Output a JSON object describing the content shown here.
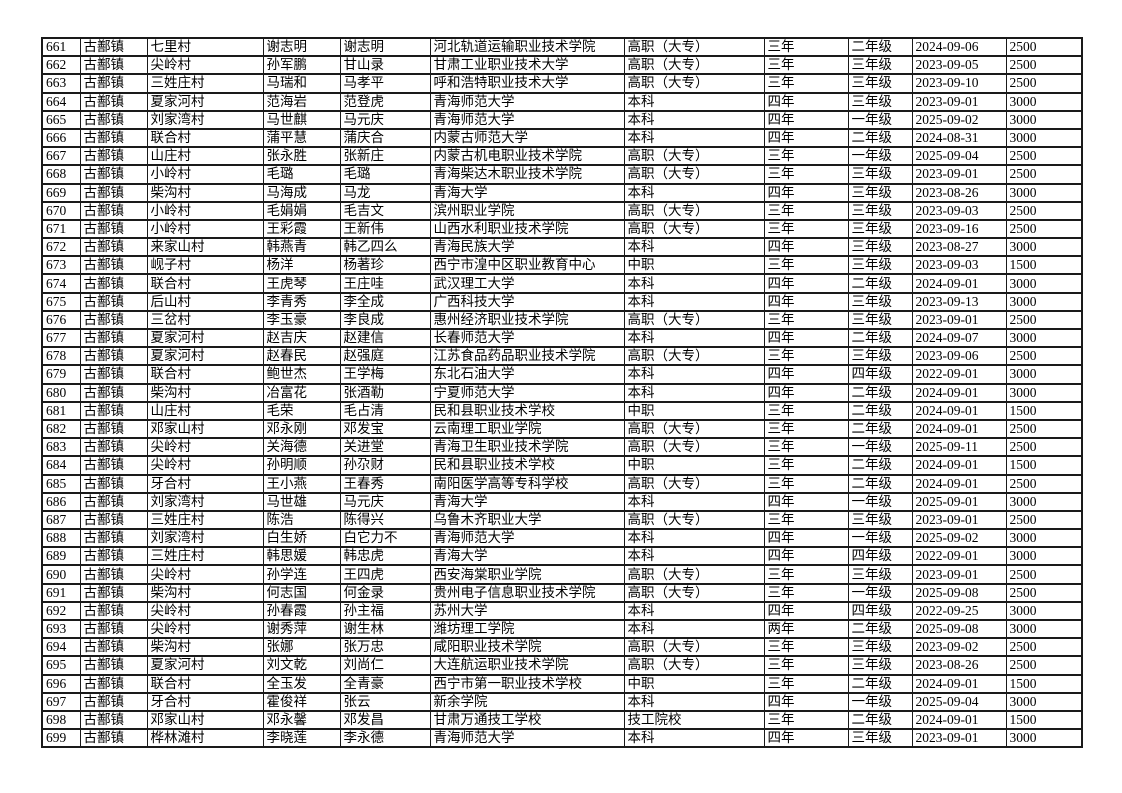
{
  "page": {
    "background_color": "#ffffff",
    "text_color": "#000000",
    "border_color": "#1a1a1a"
  },
  "table": {
    "rows": [
      [
        "661",
        "古鄯镇",
        "七里村",
        "谢志明",
        "谢志明",
        "河北轨道运输职业技术学院",
        "高职（大专）",
        "三年",
        "二年级",
        "2024-09-06",
        "2500"
      ],
      [
        "662",
        "古鄯镇",
        "尖岭村",
        "孙军鹏",
        "甘山录",
        "甘肃工业职业技术大学",
        "高职（大专）",
        "三年",
        "三年级",
        "2023-09-05",
        "2500"
      ],
      [
        "663",
        "古鄯镇",
        "三姓庄村",
        "马瑞和",
        "马孝平",
        "呼和浩特职业技术大学",
        "高职（大专）",
        "三年",
        "三年级",
        "2023-09-10",
        "2500"
      ],
      [
        "664",
        "古鄯镇",
        "夏家河村",
        "范海岩",
        "范登虎",
        "青海师范大学",
        "本科",
        "四年",
        "三年级",
        "2023-09-01",
        "3000"
      ],
      [
        "665",
        "古鄯镇",
        "刘家湾村",
        "马世麒",
        "马元庆",
        "青海师范大学",
        "本科",
        "四年",
        "一年级",
        "2025-09-02",
        "3000"
      ],
      [
        "666",
        "古鄯镇",
        "联合村",
        "蒲平慧",
        "蒲庆合",
        "内蒙古师范大学",
        "本科",
        "四年",
        "二年级",
        "2024-08-31",
        "3000"
      ],
      [
        "667",
        "古鄯镇",
        "山庄村",
        "张永胜",
        "张新庄",
        "内蒙古机电职业技术学院",
        "高职（大专）",
        "三年",
        "一年级",
        "2025-09-04",
        "2500"
      ],
      [
        "668",
        "古鄯镇",
        "小岭村",
        "毛璐",
        "毛璐",
        "青海柴达木职业技术学院",
        "高职（大专）",
        "三年",
        "三年级",
        "2023-09-01",
        "2500"
      ],
      [
        "669",
        "古鄯镇",
        "柴沟村",
        "马海成",
        "马龙",
        "青海大学",
        "本科",
        "四年",
        "三年级",
        "2023-08-26",
        "3000"
      ],
      [
        "670",
        "古鄯镇",
        "小岭村",
        "毛娟娟",
        "毛吉文",
        "滨州职业学院",
        "高职（大专）",
        "三年",
        "三年级",
        "2023-09-03",
        "2500"
      ],
      [
        "671",
        "古鄯镇",
        "小岭村",
        "王彩霞",
        "王新伟",
        "山西水利职业技术学院",
        "高职（大专）",
        "三年",
        "三年级",
        "2023-09-16",
        "2500"
      ],
      [
        "672",
        "古鄯镇",
        "来家山村",
        "韩燕青",
        "韩乙四么",
        "青海民族大学",
        "本科",
        "四年",
        "三年级",
        "2023-08-27",
        "3000"
      ],
      [
        "673",
        "古鄯镇",
        "岘子村",
        "杨洋",
        "杨著珍",
        "西宁市湟中区职业教育中心",
        "中职",
        "三年",
        "三年级",
        "2023-09-03",
        "1500"
      ],
      [
        "674",
        "古鄯镇",
        "联合村",
        "王虎琴",
        "王庄哇",
        "武汉理工大学",
        "本科",
        "四年",
        "二年级",
        "2024-09-01",
        "3000"
      ],
      [
        "675",
        "古鄯镇",
        "后山村",
        "李青秀",
        "李全成",
        "广西科技大学",
        "本科",
        "四年",
        "三年级",
        "2023-09-13",
        "3000"
      ],
      [
        "676",
        "古鄯镇",
        "三岔村",
        "李玉豪",
        "李良成",
        "惠州经济职业技术学院",
        "高职（大专）",
        "三年",
        "三年级",
        "2023-09-01",
        "2500"
      ],
      [
        "677",
        "古鄯镇",
        "夏家河村",
        "赵吉庆",
        "赵建信",
        "长春师范大学",
        "本科",
        "四年",
        "二年级",
        "2024-09-07",
        "3000"
      ],
      [
        "678",
        "古鄯镇",
        "夏家河村",
        "赵春民",
        "赵强庭",
        "江苏食品药品职业技术学院",
        "高职（大专）",
        "三年",
        "三年级",
        "2023-09-06",
        "2500"
      ],
      [
        "679",
        "古鄯镇",
        "联合村",
        "鲍世杰",
        "王学梅",
        "东北石油大学",
        "本科",
        "四年",
        "四年级",
        "2022-09-01",
        "3000"
      ],
      [
        "680",
        "古鄯镇",
        "柴沟村",
        "冶富花",
        "张酒勒",
        "宁夏师范大学",
        "本科",
        "四年",
        "二年级",
        "2024-09-01",
        "3000"
      ],
      [
        "681",
        "古鄯镇",
        "山庄村",
        "毛荣",
        "毛占清",
        "民和县职业技术学校",
        "中职",
        "三年",
        "二年级",
        "2024-09-01",
        "1500"
      ],
      [
        "682",
        "古鄯镇",
        "邓家山村",
        "邓永刚",
        "邓发宝",
        "云南理工职业学院",
        "高职（大专）",
        "三年",
        "二年级",
        "2024-09-01",
        "2500"
      ],
      [
        "683",
        "古鄯镇",
        "尖岭村",
        "关海德",
        "关进堂",
        "青海卫生职业技术学院",
        "高职（大专）",
        "三年",
        "一年级",
        "2025-09-11",
        "2500"
      ],
      [
        "684",
        "古鄯镇",
        "尖岭村",
        "孙明顺",
        "孙尕财",
        "民和县职业技术学校",
        "中职",
        "三年",
        "二年级",
        "2024-09-01",
        "1500"
      ],
      [
        "685",
        "古鄯镇",
        "牙合村",
        "王小燕",
        "王春秀",
        "南阳医学高等专科学校",
        "高职（大专）",
        "三年",
        "二年级",
        "2024-09-01",
        "2500"
      ],
      [
        "686",
        "古鄯镇",
        "刘家湾村",
        "马世雄",
        "马元庆",
        "青海大学",
        "本科",
        "四年",
        "一年级",
        "2025-09-01",
        "3000"
      ],
      [
        "687",
        "古鄯镇",
        "三姓庄村",
        "陈浩",
        "陈得兴",
        "乌鲁木齐职业大学",
        "高职（大专）",
        "三年",
        "三年级",
        "2023-09-01",
        "2500"
      ],
      [
        "688",
        "古鄯镇",
        "刘家湾村",
        "白生娇",
        "白它力不",
        "青海师范大学",
        "本科",
        "四年",
        "一年级",
        "2025-09-02",
        "3000"
      ],
      [
        "689",
        "古鄯镇",
        "三姓庄村",
        "韩思媛",
        "韩忠虎",
        "青海大学",
        "本科",
        "四年",
        "四年级",
        "2022-09-01",
        "3000"
      ],
      [
        "690",
        "古鄯镇",
        "尖岭村",
        "孙学连",
        "王四虎",
        "西安海棠职业学院",
        "高职（大专）",
        "三年",
        "三年级",
        "2023-09-01",
        "2500"
      ],
      [
        "691",
        "古鄯镇",
        "柴沟村",
        "何志国",
        "何金录",
        "贵州电子信息职业技术学院",
        "高职（大专）",
        "三年",
        "一年级",
        "2025-09-08",
        "2500"
      ],
      [
        "692",
        "古鄯镇",
        "尖岭村",
        "孙春霞",
        "孙主福",
        "苏州大学",
        "本科",
        "四年",
        "四年级",
        "2022-09-25",
        "3000"
      ],
      [
        "693",
        "古鄯镇",
        "尖岭村",
        "谢秀萍",
        "谢生林",
        "潍坊理工学院",
        "本科",
        "两年",
        "二年级",
        "2025-09-08",
        "3000"
      ],
      [
        "694",
        "古鄯镇",
        "柴沟村",
        "张娜",
        "张万忠",
        "咸阳职业技术学院",
        "高职（大专）",
        "三年",
        "三年级",
        "2023-09-02",
        "2500"
      ],
      [
        "695",
        "古鄯镇",
        "夏家河村",
        "刘文乾",
        "刘尚仁",
        "大连航运职业技术学院",
        "高职（大专）",
        "三年",
        "三年级",
        "2023-08-26",
        "2500"
      ],
      [
        "696",
        "古鄯镇",
        "联合村",
        "全玉发",
        "全青豪",
        "西宁市第一职业技术学校",
        "中职",
        "三年",
        "二年级",
        "2024-09-01",
        "1500"
      ],
      [
        "697",
        "古鄯镇",
        "牙合村",
        "霍俊祥",
        "张云",
        "新余学院",
        "本科",
        "四年",
        "一年级",
        "2025-09-04",
        "3000"
      ],
      [
        "698",
        "古鄯镇",
        "邓家山村",
        "邓永馨",
        "邓发昌",
        "甘肃万通技工学校",
        "技工院校",
        "三年",
        "二年级",
        "2024-09-01",
        "1500"
      ],
      [
        "699",
        "古鄯镇",
        "桦林滩村",
        "李晓莲",
        "李永德",
        "青海师范大学",
        "本科",
        "四年",
        "三年级",
        "2023-09-01",
        "3000"
      ]
    ]
  }
}
